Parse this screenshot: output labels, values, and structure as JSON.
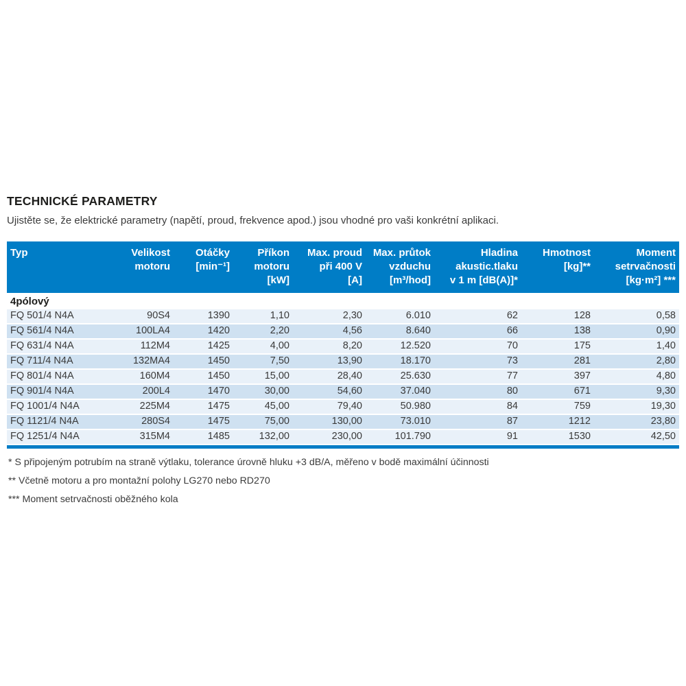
{
  "page": {
    "title": "TECHNICKÉ PARAMETRY",
    "subtitle": "Ujistěte se, že elektrické parametry (napětí, proud, frekvence apod.) jsou vhodné pro vaši konkrétní aplikaci."
  },
  "table": {
    "headers": [
      {
        "id": "typ",
        "lines": [
          "Typ"
        ],
        "align": "left"
      },
      {
        "id": "velikost-motoru",
        "lines": [
          "Velikost",
          "motoru"
        ],
        "align": "right"
      },
      {
        "id": "otacky",
        "lines": [
          "Otáčky",
          "[min⁻¹]"
        ],
        "align": "right"
      },
      {
        "id": "prikon-motoru",
        "lines": [
          "Příkon",
          "motoru",
          "[kW]"
        ],
        "align": "right"
      },
      {
        "id": "max-proud",
        "lines": [
          "Max. proud",
          "při 400 V",
          "[A]"
        ],
        "align": "right"
      },
      {
        "id": "max-prutok",
        "lines": [
          "Max. průtok",
          "vzduchu",
          "[m³/hod]"
        ],
        "align": "right"
      },
      {
        "id": "hladina-tlaku",
        "lines": [
          "Hladina",
          "akustic.tlaku",
          "v 1 m [dB(A)]*"
        ],
        "align": "right"
      },
      {
        "id": "hmotnost",
        "lines": [
          "Hmotnost",
          "[kg]**"
        ],
        "align": "right"
      },
      {
        "id": "moment",
        "lines": [
          "Moment",
          "setrvačnosti",
          "[kg·m²] ***"
        ],
        "align": "right"
      }
    ],
    "section": "4pólový",
    "rows": [
      [
        "FQ 501/4 N4A",
        "90S4",
        "1390",
        "1,10",
        "2,30",
        "6.010",
        "62",
        "128",
        "0,58"
      ],
      [
        "FQ 561/4 N4A",
        "100LA4",
        "1420",
        "2,20",
        "4,56",
        "8.640",
        "66",
        "138",
        "0,90"
      ],
      [
        "FQ 631/4 N4A",
        "112M4",
        "1425",
        "4,00",
        "8,20",
        "12.520",
        "70",
        "175",
        "1,40"
      ],
      [
        "FQ 711/4 N4A",
        "132MA4",
        "1450",
        "7,50",
        "13,90",
        "18.170",
        "73",
        "281",
        "2,80"
      ],
      [
        "FQ 801/4 N4A",
        "160M4",
        "1450",
        "15,00",
        "28,40",
        "25.630",
        "77",
        "397",
        "4,80"
      ],
      [
        "FQ 901/4 N4A",
        "200L4",
        "1470",
        "30,00",
        "54,60",
        "37.040",
        "80",
        "671",
        "9,30"
      ],
      [
        "FQ 1001/4 N4A",
        "225M4",
        "1475",
        "45,00",
        "79,40",
        "50.980",
        "84",
        "759",
        "19,30"
      ],
      [
        "FQ 1121/4 N4A",
        "280S4",
        "1475",
        "75,00",
        "130,00",
        "73.010",
        "87",
        "1212",
        "23,80"
      ],
      [
        "FQ 1251/4 N4A",
        "315M4",
        "1485",
        "132,00",
        "230,00",
        "101.790",
        "91",
        "1530",
        "42,50"
      ]
    ]
  },
  "footnotes": [
    "* S připojeným potrubím na straně výtlaku, tolerance úrovně hluku +3 dB/A, měřeno v bodě maximální účinnosti",
    "** Včetně motoru a pro montažní polohy LG270 nebo RD270",
    "*** Moment setrvačnosti oběžného kola"
  ],
  "colors": {
    "header_bg": "#007dc6",
    "row_light": "#e9f1f9",
    "row_dark": "#cfe1f1"
  }
}
